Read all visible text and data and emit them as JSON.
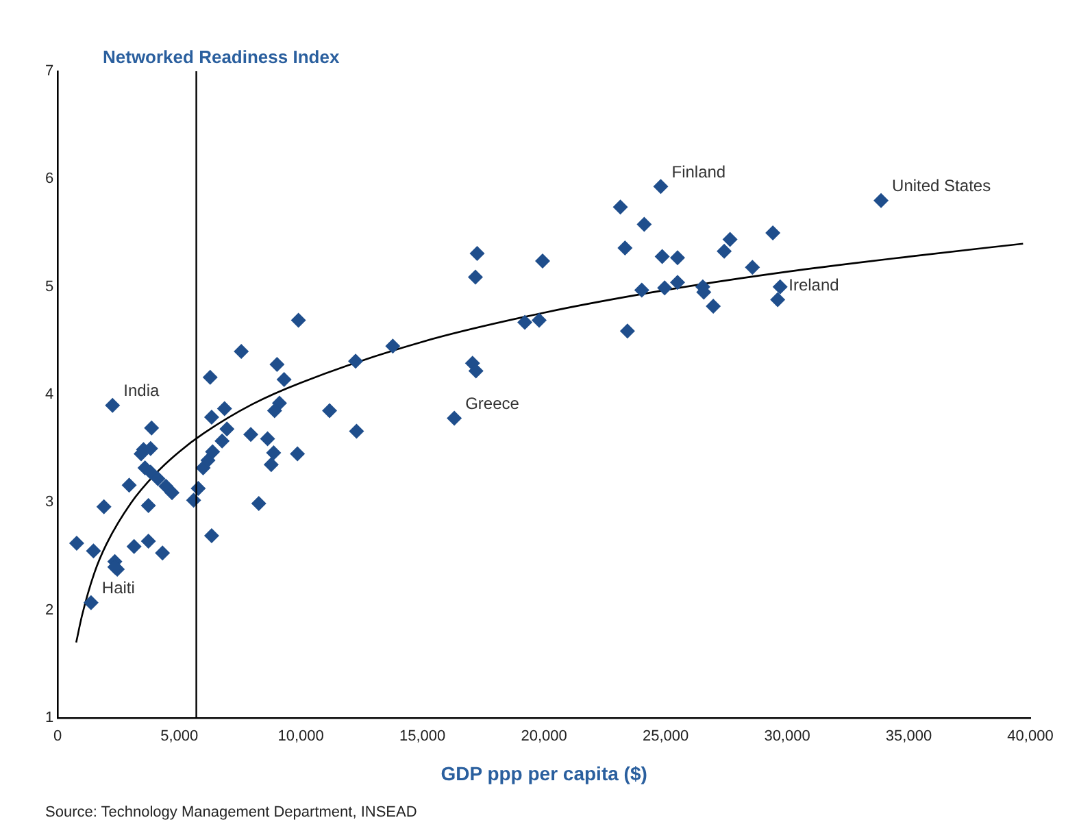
{
  "chart_data": {
    "type": "scatter",
    "ylabel": "Networked Readiness Index",
    "xlabel": "GDP ppp per capita ($)",
    "xlim": [
      0,
      40000
    ],
    "ylim": [
      1,
      7
    ],
    "xticks": [
      0,
      {
        "value": 5000,
        "label": "5,000"
      },
      {
        "value": 10000,
        "label": "10,000"
      },
      {
        "value": 15000,
        "label": "15,000"
      },
      {
        "value": 20000,
        "label": "20,000"
      },
      {
        "value": 25000,
        "label": "25,000"
      },
      {
        "value": 30000,
        "label": "30,000"
      },
      {
        "value": 35000,
        "label": "35,000"
      },
      {
        "value": 40000,
        "label": "40,000"
      }
    ],
    "yticks": [
      1,
      2,
      3,
      4,
      5,
      6,
      7
    ],
    "grid": false,
    "legend": false,
    "marker": "diamond",
    "series": [
      {
        "color": "#1f4e8c",
        "x": [
          2255,
          3860,
          3530,
          3820,
          3430,
          3590,
          3820,
          4120,
          4450,
          4700,
          2940,
          3730,
          1900,
          780,
          1470,
          3140,
          3730,
          4310,
          2350,
          2450,
          2350,
          1370,
          5590,
          5780,
          5980,
          6180,
          6370,
          6330,
          6270,
          6330,
          6860,
          6960,
          6760,
          7940,
          7550,
          9020,
          9310,
          9120,
          8920,
          8630,
          8880,
          8780,
          8270,
          9860,
          11180,
          9900,
          12290,
          12250,
          13780,
          16310,
          17060,
          17200,
          17180,
          19210,
          19800,
          17250,
          19940,
          24800,
          23140,
          24120,
          23330,
          24860,
          25490,
          24020,
          24960,
          25490,
          26530,
          26570,
          26960,
          23430,
          27410,
          27650,
          28570,
          29410,
          29710,
          29610,
          33860
        ],
        "values": [
          3.9,
          3.69,
          3.49,
          3.5,
          3.45,
          3.32,
          3.28,
          3.22,
          3.15,
          3.09,
          3.16,
          2.97,
          2.96,
          2.62,
          2.55,
          2.59,
          2.64,
          2.53,
          2.45,
          2.38,
          2.4,
          2.07,
          3.02,
          3.13,
          3.32,
          3.39,
          3.47,
          2.69,
          4.16,
          3.79,
          3.87,
          3.68,
          3.57,
          3.63,
          4.4,
          4.28,
          4.14,
          3.92,
          3.85,
          3.59,
          3.46,
          3.35,
          2.99,
          3.45,
          3.85,
          4.69,
          3.66,
          4.31,
          4.45,
          3.78,
          4.29,
          4.22,
          5.09,
          4.67,
          4.69,
          5.31,
          5.24,
          5.93,
          5.74,
          5.58,
          5.36,
          5.28,
          5.27,
          4.97,
          4.99,
          5.04,
          5,
          4.95,
          4.82,
          4.59,
          5.33,
          5.44,
          5.18,
          5.5,
          5,
          4.88,
          5.8
        ]
      },
      {
        "type": "line",
        "color": "#000000",
        "marker": "none",
        "x": [
          760,
          1000,
          1500,
          2000,
          3000,
          4000,
          5000,
          6000,
          8000,
          10000,
          15000,
          20000,
          25000,
          30000,
          35000,
          39700
        ],
        "values": [
          1.7,
          1.95,
          2.34,
          2.61,
          2.99,
          3.26,
          3.47,
          3.64,
          3.91,
          4.11,
          4.49,
          4.76,
          4.97,
          5.14,
          5.28,
          5.4
        ]
      }
    ],
    "ref_lines": [
      {
        "axis": "x",
        "value": 5700,
        "color": "#000000"
      }
    ],
    "annotations": [
      {
        "text": "India",
        "x": 2255,
        "y": 3.9
      },
      {
        "text": "Haiti",
        "x": 1370,
        "y": 2.07
      },
      {
        "text": "Greece",
        "x": 16310,
        "y": 3.78
      },
      {
        "text": "Finland",
        "x": 24800,
        "y": 5.93
      },
      {
        "text": "Ireland",
        "x": 29610,
        "y": 4.88
      },
      {
        "text": "United States",
        "x": 33860,
        "y": 5.8
      },
      "Source: Technology Management Department, INSEAD"
    ]
  }
}
